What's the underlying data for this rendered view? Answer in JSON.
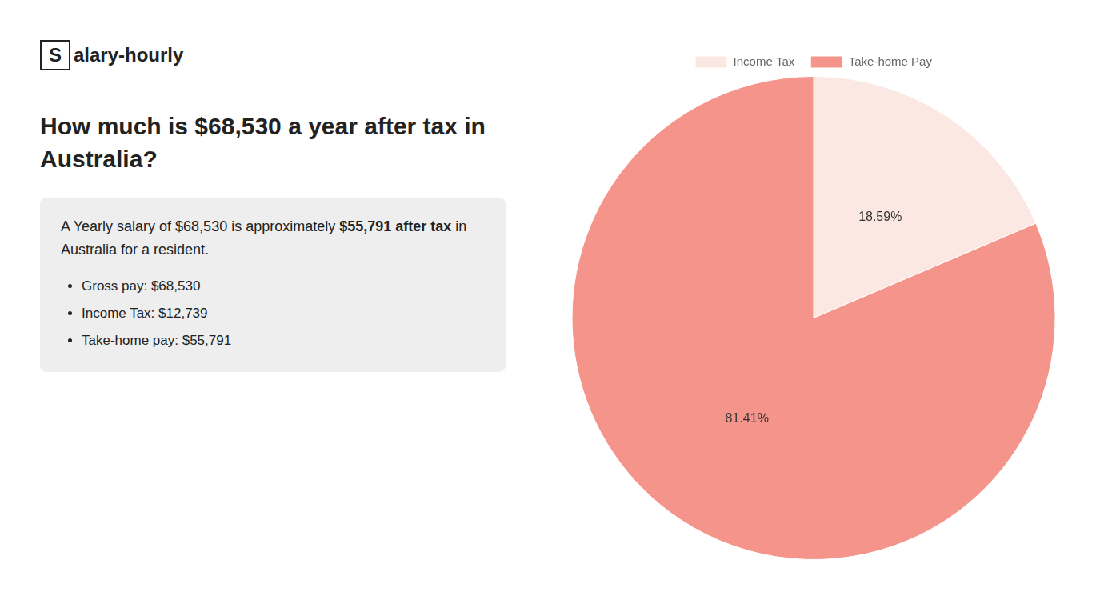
{
  "chart_data": {
    "type": "pie",
    "title": [
      "How much is $68,530 a year after tax in",
      "Australia?"
    ],
    "annotations": [
      "S",
      "alary-hourly",
      "A Yearly salary of $68,530 is approximately ",
      "$55,791 after tax",
      " in",
      "Australia for a resident.",
      "Gross pay: $68,530",
      "Income Tax: $12,739",
      "Take-home pay: $55,791"
    ],
    "categories": [
      "Income Tax",
      "Take-home Pay"
    ],
    "values": [
      18.59,
      81.41
    ],
    "value_labels": [
      "18.59%",
      "81.41%"
    ],
    "colors": [
      "#fce8e2",
      "#f4948a"
    ],
    "data_labels": true,
    "legend": "top"
  }
}
